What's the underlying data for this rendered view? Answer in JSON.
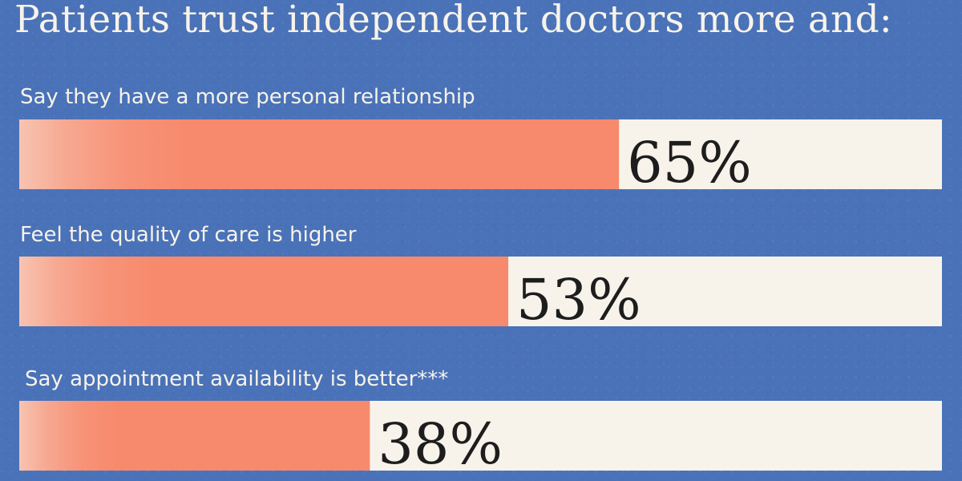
{
  "chart_data": {
    "type": "bar",
    "title": "Patients trust independent doctors more and:",
    "categories": [
      "Say they have a more personal relationship",
      "Feel the quality of care is higher",
      "Say appointment availability is better***"
    ],
    "values": [
      65,
      53,
      38
    ],
    "value_labels": [
      "65%",
      "53%",
      "38%"
    ],
    "xlim": [
      0,
      100
    ],
    "orientation": "horizontal",
    "grid": false,
    "legend": "none",
    "colors": {
      "background": "#4a72b8",
      "bar_fill": "#f78a6d",
      "track": "#f7f3ea",
      "title": "#f7f3ea",
      "label": "#f7f3ea",
      "value_text": "#1d1d1d"
    }
  }
}
